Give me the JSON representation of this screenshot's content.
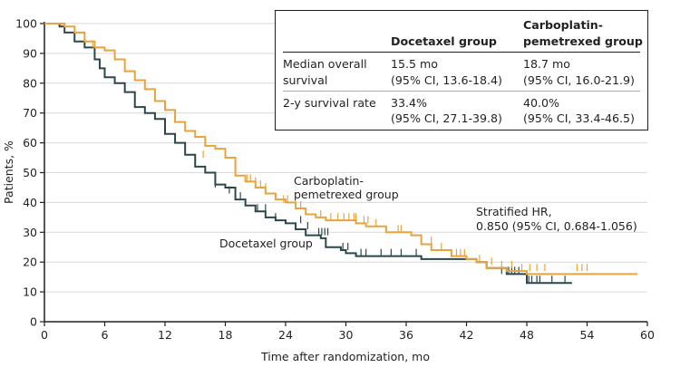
{
  "chart_data": {
    "type": "line",
    "subtype": "kaplan-meier step",
    "xlabel": "Time after randomization, mo",
    "ylabel": "Patients, %",
    "xlim": [
      0,
      60
    ],
    "ylim": [
      0,
      100
    ],
    "xticks": [
      "0",
      "6",
      "12",
      "18",
      "24",
      "30",
      "36",
      "42",
      "48",
      "54",
      "60"
    ],
    "yticks": [
      "0",
      "10",
      "20",
      "30",
      "40",
      "50",
      "60",
      "70",
      "80",
      "90",
      "100"
    ],
    "grid": "horizontal",
    "series": [
      {
        "name": "Docetaxel group",
        "color": "#2b474c",
        "steps": [
          [
            0,
            100
          ],
          [
            1.5,
            99
          ],
          [
            2,
            97
          ],
          [
            3,
            94
          ],
          [
            4,
            92
          ],
          [
            5,
            88
          ],
          [
            5.5,
            85
          ],
          [
            6,
            82
          ],
          [
            7,
            80
          ],
          [
            8,
            77
          ],
          [
            9,
            72
          ],
          [
            10,
            70
          ],
          [
            11,
            68
          ],
          [
            12,
            63
          ],
          [
            13,
            60
          ],
          [
            14,
            56
          ],
          [
            15,
            52
          ],
          [
            16,
            50
          ],
          [
            17,
            46
          ],
          [
            18,
            45
          ],
          [
            19,
            41
          ],
          [
            20,
            39
          ],
          [
            21,
            37
          ],
          [
            22,
            35
          ],
          [
            23,
            34
          ],
          [
            24,
            33
          ],
          [
            25,
            31
          ],
          [
            26,
            29
          ],
          [
            27.5,
            28
          ],
          [
            28,
            25
          ],
          [
            29.5,
            24
          ],
          [
            30,
            23
          ],
          [
            31,
            22
          ],
          [
            37.5,
            21
          ],
          [
            43,
            20
          ],
          [
            44,
            18
          ],
          [
            46,
            16
          ],
          [
            48,
            13
          ],
          [
            52.5,
            13
          ]
        ],
        "censored": [
          [
            17,
            45
          ],
          [
            18.4,
            43
          ],
          [
            19.5,
            41
          ],
          [
            21.2,
            37
          ],
          [
            22,
            37
          ],
          [
            23,
            34
          ],
          [
            25.5,
            33
          ],
          [
            26.2,
            31
          ],
          [
            27.3,
            29
          ],
          [
            27.6,
            29
          ],
          [
            27.9,
            29
          ],
          [
            28.2,
            29
          ],
          [
            29.7,
            24
          ],
          [
            30.2,
            24
          ],
          [
            31.5,
            22
          ],
          [
            32,
            22
          ],
          [
            33.5,
            22
          ],
          [
            34.5,
            22
          ],
          [
            35.5,
            22
          ],
          [
            37,
            22
          ],
          [
            45.5,
            16
          ],
          [
            46.2,
            16
          ],
          [
            46.5,
            16
          ],
          [
            46.8,
            16
          ],
          [
            47.2,
            16
          ],
          [
            48.2,
            13
          ],
          [
            48.5,
            13
          ],
          [
            49,
            13
          ],
          [
            49.3,
            13
          ],
          [
            50.5,
            13
          ],
          [
            51.8,
            13
          ]
        ],
        "label": "Docetaxel group"
      },
      {
        "name": "Carboplatin-pemetrexed group",
        "color": "#e8a33d",
        "steps": [
          [
            0,
            100
          ],
          [
            2,
            99
          ],
          [
            3,
            97
          ],
          [
            4,
            94
          ],
          [
            5,
            92
          ],
          [
            6,
            91
          ],
          [
            7,
            88
          ],
          [
            8,
            84
          ],
          [
            9,
            81
          ],
          [
            10,
            78
          ],
          [
            11,
            74
          ],
          [
            12,
            71
          ],
          [
            13,
            67
          ],
          [
            14,
            64
          ],
          [
            15,
            62
          ],
          [
            16,
            59
          ],
          [
            17,
            58
          ],
          [
            18,
            55
          ],
          [
            19,
            49
          ],
          [
            20,
            47
          ],
          [
            21,
            45
          ],
          [
            22,
            43
          ],
          [
            23,
            41
          ],
          [
            24,
            40
          ],
          [
            25,
            38
          ],
          [
            26,
            36
          ],
          [
            27,
            35
          ],
          [
            28,
            34
          ],
          [
            30,
            34
          ],
          [
            31,
            33
          ],
          [
            32,
            32
          ],
          [
            34,
            30
          ],
          [
            36.5,
            29
          ],
          [
            37.5,
            26
          ],
          [
            38.5,
            24
          ],
          [
            40.5,
            22
          ],
          [
            42,
            21
          ],
          [
            43,
            20
          ],
          [
            44,
            18
          ],
          [
            46,
            17
          ],
          [
            48,
            16
          ],
          [
            59,
            16
          ]
        ],
        "censored": [
          [
            4.8,
            92
          ],
          [
            15.8,
            55
          ],
          [
            20.2,
            47
          ],
          [
            20.5,
            47
          ],
          [
            21,
            46
          ],
          [
            21.5,
            45
          ],
          [
            22,
            44
          ],
          [
            23.8,
            40
          ],
          [
            24.2,
            40
          ],
          [
            25.5,
            38
          ],
          [
            27.5,
            35
          ],
          [
            28.5,
            34
          ],
          [
            29.2,
            34
          ],
          [
            29.8,
            34
          ],
          [
            30.3,
            34
          ],
          [
            30.8,
            34
          ],
          [
            31,
            34
          ],
          [
            31.8,
            33
          ],
          [
            32.2,
            33
          ],
          [
            33,
            32
          ],
          [
            35.2,
            30
          ],
          [
            35.5,
            30
          ],
          [
            38.5,
            26
          ],
          [
            39.5,
            24
          ],
          [
            41,
            22
          ],
          [
            41.4,
            22
          ],
          [
            41.8,
            22
          ],
          [
            43.3,
            20
          ],
          [
            44.5,
            19
          ],
          [
            45.5,
            18
          ],
          [
            46.5,
            18
          ],
          [
            47.5,
            17
          ],
          [
            48.3,
            17
          ],
          [
            49,
            17
          ],
          [
            49.8,
            17
          ],
          [
            53,
            17
          ],
          [
            53.5,
            17
          ],
          [
            54,
            17
          ]
        ],
        "label": "Carboplatin-\npemetrexed group"
      }
    ],
    "annotations": {
      "hr_line1": "Stratified HR,",
      "hr_line2": "0.850 (95% CI, 0.684-1.056)",
      "docetaxel_label": "Docetaxel group",
      "carbo_label_line1": "Carboplatin-",
      "carbo_label_line2": "pemetrexed group"
    },
    "table": {
      "headers": [
        "",
        "Docetaxel group",
        "Carboplatin-\npemetrexed group"
      ],
      "header_col3_line1": "Carboplatin-",
      "header_col3_line2": "pemetrexed group",
      "rows": [
        {
          "label_line1": "Median overall",
          "label_line2": "survival",
          "doc_line1": "15.5 mo",
          "doc_line2": "(95% CI, 13.6-18.4)",
          "carbo_line1": "18.7 mo",
          "carbo_line2": "(95% CI, 16.0-21.9)"
        },
        {
          "label_line1": "2-y survival rate",
          "label_line2": "",
          "doc_line1": "33.4%",
          "doc_line2": "(95% CI, 27.1-39.8)",
          "carbo_line1": "40.0%",
          "carbo_line2": "(95% CI, 33.4-46.5)"
        }
      ]
    }
  }
}
